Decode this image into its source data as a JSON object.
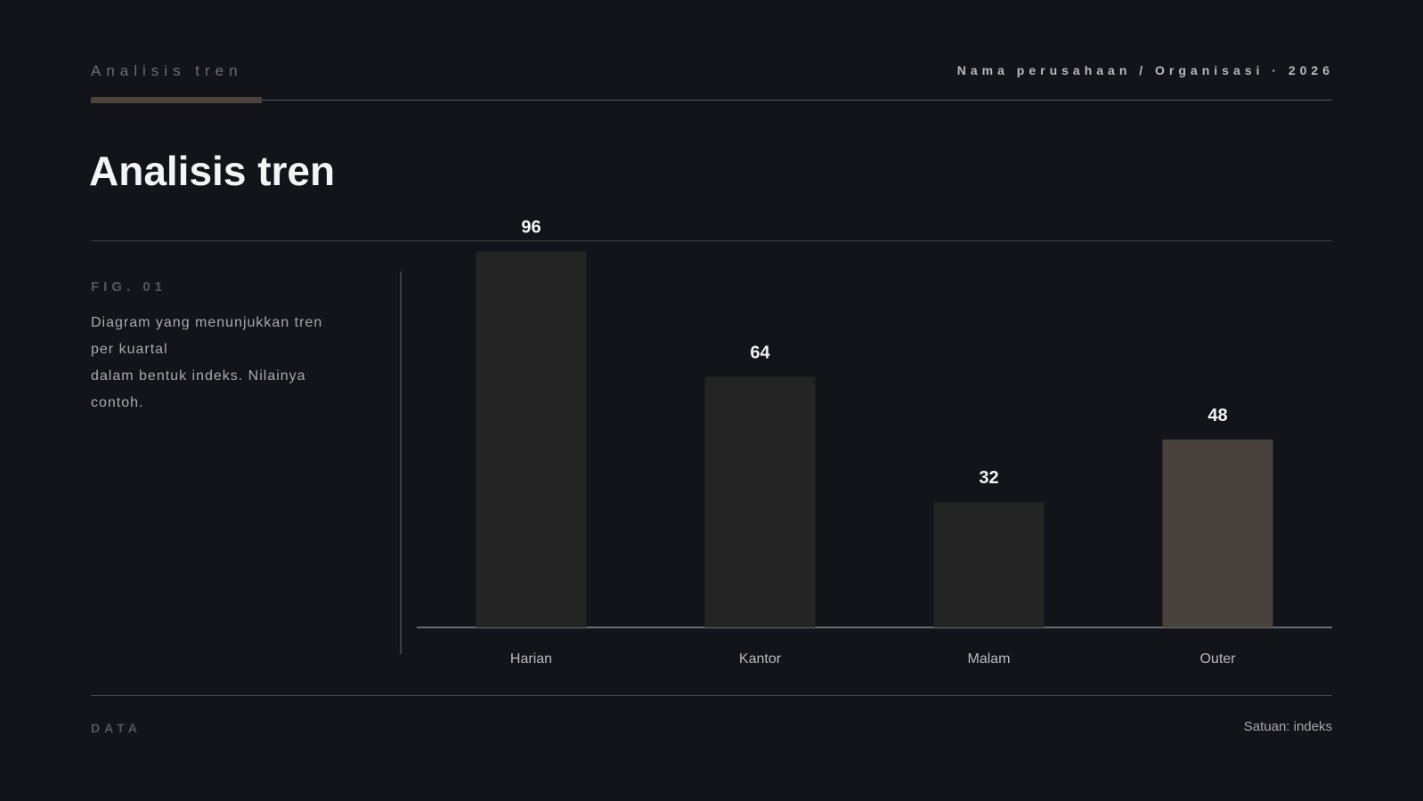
{
  "header": {
    "eyebrow": "Analisis tren",
    "org": "Nama perusahaan / Organisasi · 2026"
  },
  "title": "Analisis tren",
  "figure": {
    "label": "FIG. 01",
    "description_lines": [
      "Diagram yang menunjukkan tren",
      "per kuartal",
      "dalam bentuk indeks. Nilainya",
      "contoh."
    ]
  },
  "footer": {
    "left": "DATA",
    "right": "Satuan: indeks"
  },
  "colors": {
    "background": "#12141a",
    "bar": "#242424",
    "bar_highlight": "#47423b",
    "accent": "#4a443c"
  },
  "chart_data": {
    "type": "bar",
    "categories": [
      "Harian",
      "Kantor",
      "Malam",
      "Outer"
    ],
    "values": [
      96,
      64,
      32,
      48
    ],
    "highlight_index": 3,
    "ylim": [
      0,
      100
    ],
    "grid": false,
    "title": "",
    "xlabel": "",
    "ylabel": ""
  }
}
